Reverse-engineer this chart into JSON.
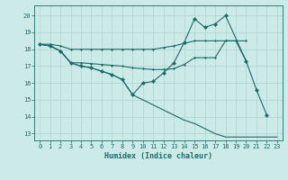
{
  "xlabel": "Humidex (Indice chaleur)",
  "bg_color": "#cceae8",
  "line_color": "#1a6b6b",
  "grid_color": "#aed4d2",
  "xlim": [
    -0.5,
    23.5
  ],
  "ylim": [
    12.6,
    20.6
  ],
  "yticks": [
    13,
    14,
    15,
    16,
    17,
    18,
    19,
    20
  ],
  "xticks": [
    0,
    1,
    2,
    3,
    4,
    5,
    6,
    7,
    8,
    9,
    10,
    11,
    12,
    13,
    14,
    15,
    16,
    17,
    18,
    19,
    20,
    21,
    22,
    23
  ],
  "line1_x": [
    0,
    1,
    2,
    3,
    4,
    5,
    6,
    7,
    8,
    9,
    10,
    11,
    12,
    13,
    14,
    15,
    16,
    17,
    18,
    19,
    20
  ],
  "line1_y": [
    18.3,
    18.3,
    18.2,
    18.0,
    18.0,
    18.0,
    18.0,
    18.0,
    18.0,
    18.0,
    18.0,
    18.0,
    18.1,
    18.2,
    18.35,
    18.5,
    18.5,
    18.5,
    18.5,
    18.5,
    18.5
  ],
  "line2_x": [
    0,
    1,
    2,
    3,
    4,
    5,
    6,
    7,
    8,
    9,
    10,
    11,
    12,
    13,
    14,
    15,
    16,
    17,
    18,
    19,
    20
  ],
  "line2_y": [
    18.3,
    18.2,
    17.9,
    17.2,
    17.2,
    17.15,
    17.1,
    17.05,
    17.0,
    16.9,
    16.85,
    16.8,
    16.8,
    16.85,
    17.1,
    17.5,
    17.5,
    17.5,
    18.5,
    18.5,
    17.3
  ],
  "line3_x": [
    0,
    1,
    2,
    3,
    4,
    5,
    6,
    7,
    8,
    9,
    10,
    11,
    12,
    13,
    14,
    15,
    16,
    17,
    18,
    20,
    21,
    22
  ],
  "line3_y": [
    18.3,
    18.2,
    17.9,
    17.2,
    17.0,
    16.9,
    16.7,
    16.5,
    16.2,
    15.3,
    16.0,
    16.1,
    16.6,
    17.2,
    18.4,
    19.8,
    19.3,
    19.5,
    20.0,
    17.3,
    15.6,
    14.1
  ],
  "line4_x": [
    0,
    1,
    2,
    3,
    4,
    5,
    6,
    7,
    8,
    9,
    10,
    11,
    12,
    13,
    14,
    15,
    16,
    17,
    18,
    23
  ],
  "line4_y": [
    18.3,
    18.2,
    17.9,
    17.2,
    17.0,
    16.9,
    16.7,
    16.5,
    16.2,
    15.3,
    15.0,
    14.7,
    14.4,
    14.1,
    13.8,
    13.6,
    13.3,
    13.0,
    12.8,
    12.8
  ]
}
